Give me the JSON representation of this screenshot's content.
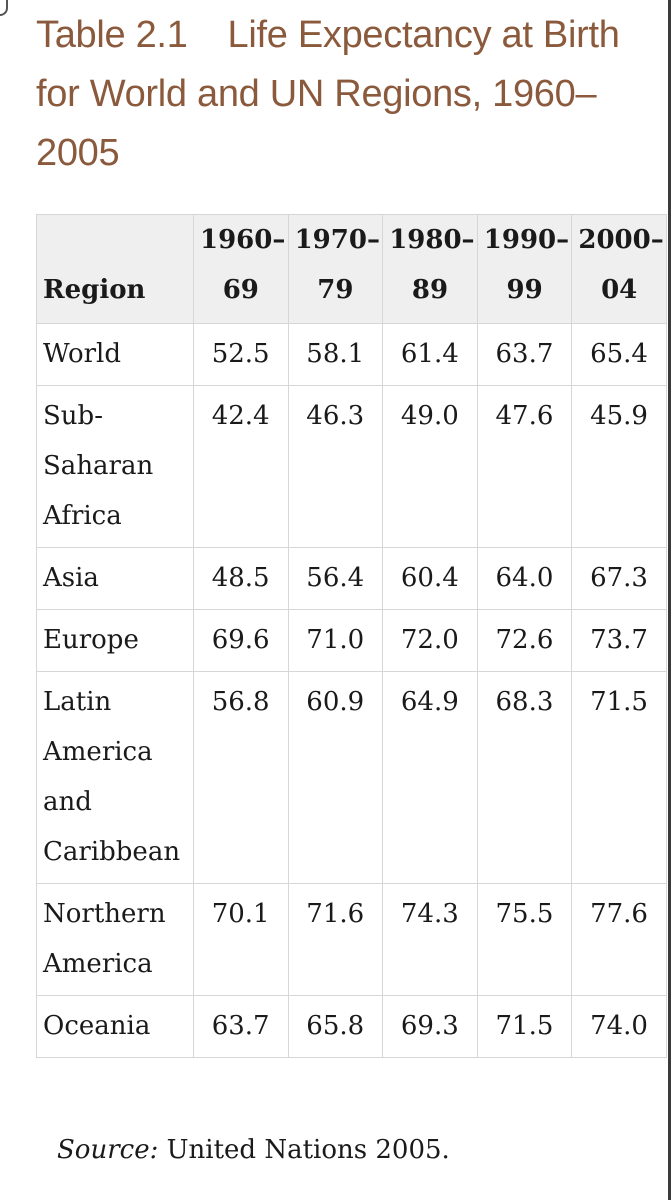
{
  "title": {
    "number": "Table 2.1",
    "text": "Life Expectancy at Birth for World and UN Regions, 1960–2005"
  },
  "table": {
    "region_header": "Region",
    "year_headers": [
      "1960–\n69",
      "1970–\n79",
      "1980–\n89",
      "1990–\n99",
      "2000–\n04"
    ],
    "rows": [
      {
        "region": "World",
        "values": [
          "52.5",
          "58.1",
          "61.4",
          "63.7",
          "65.4"
        ]
      },
      {
        "region": "Sub-\nSaharan\nAfrica",
        "values": [
          "42.4",
          "46.3",
          "49.0",
          "47.6",
          "45.9"
        ]
      },
      {
        "region": "Asia",
        "values": [
          "48.5",
          "56.4",
          "60.4",
          "64.0",
          "67.3"
        ]
      },
      {
        "region": "Europe",
        "values": [
          "69.6",
          "71.0",
          "72.0",
          "72.6",
          "73.7"
        ]
      },
      {
        "region": "Latin\nAmerica\nand\nCaribbean",
        "values": [
          "56.8",
          "60.9",
          "64.9",
          "68.3",
          "71.5"
        ]
      },
      {
        "region": "Northern\nAmerica",
        "values": [
          "70.1",
          "71.6",
          "74.3",
          "75.5",
          "77.6"
        ]
      },
      {
        "region": "Oceania",
        "values": [
          "63.7",
          "65.8",
          "69.3",
          "71.5",
          "74.0"
        ]
      }
    ]
  },
  "source": {
    "label": "Source:",
    "text": " United Nations 2005."
  },
  "colors": {
    "title": "#8b5a3c",
    "header_bg": "#efefef",
    "grid": "#d6d6d6"
  }
}
